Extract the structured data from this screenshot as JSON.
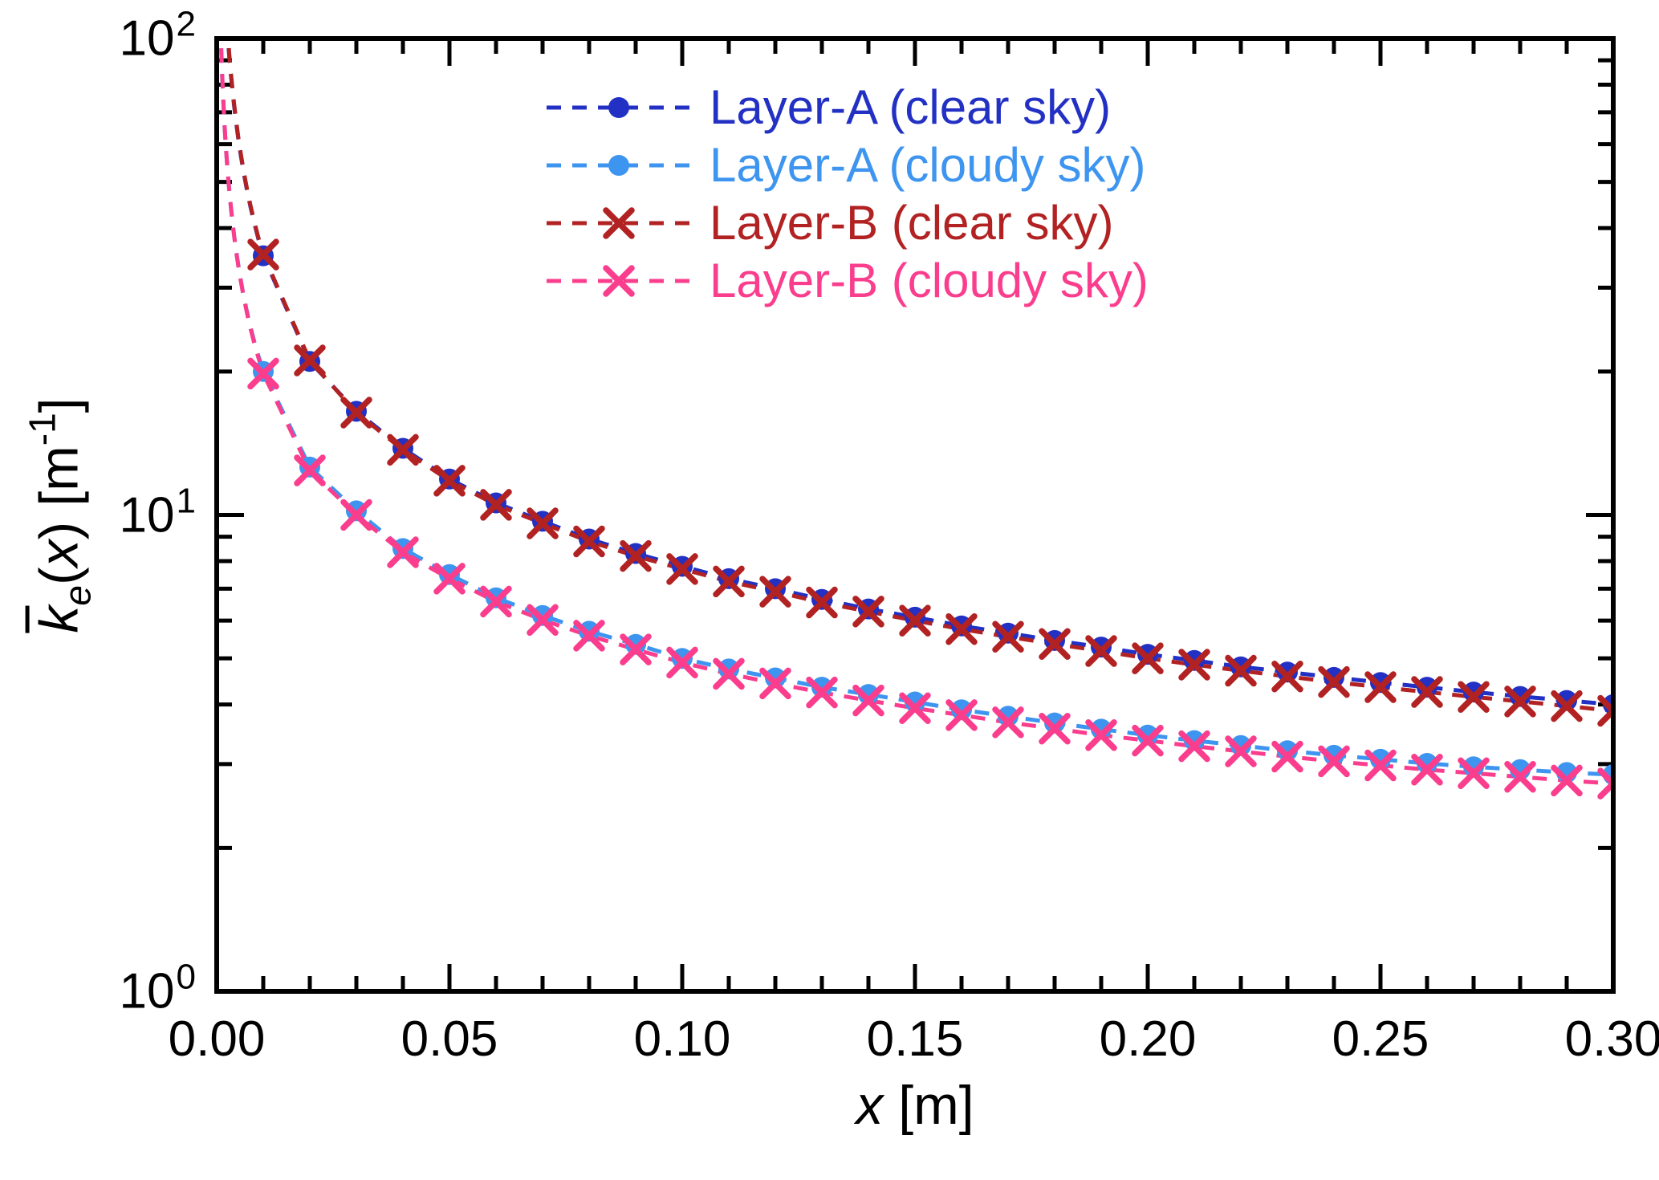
{
  "figure": {
    "background": "#ffffff"
  },
  "chart_data": {
    "type": "line",
    "title": "",
    "xlabel": {
      "var": "x",
      "unit": " [m]"
    },
    "ylabel": {
      "k": "k",
      "sub": "e",
      "open": "(",
      "var": "x",
      "close": ")",
      "unit": " [m",
      "exp": "-1",
      "bracket": "]"
    },
    "xscale": "linear",
    "yscale": "log",
    "xlim": [
      0,
      0.3
    ],
    "ylim": [
      1,
      100
    ],
    "grid": false,
    "legend_position": "inside upper right",
    "x_major_ticks": [
      0,
      0.05,
      0.1,
      0.15,
      0.2,
      0.25,
      0.3
    ],
    "x_tick_labels": [
      "0.00",
      "0.05",
      "0.10",
      "0.15",
      "0.20",
      "0.25",
      "0.30"
    ],
    "x_minor_step": 0.01,
    "y_major_ticks": [
      1,
      10,
      100
    ],
    "y_tick_labels": [
      {
        "base": "10",
        "exp": "0"
      },
      {
        "base": "10",
        "exp": "1"
      },
      {
        "base": "10",
        "exp": "2"
      }
    ],
    "x": [
      0.01,
      0.02,
      0.03,
      0.04,
      0.05,
      0.06,
      0.07,
      0.08,
      0.09,
      0.1,
      0.11,
      0.12,
      0.13,
      0.14,
      0.15,
      0.16,
      0.17,
      0.18,
      0.19,
      0.2,
      0.21,
      0.22,
      0.23,
      0.24,
      0.25,
      0.26,
      0.27,
      0.28,
      0.29,
      0.3
    ],
    "series": [
      {
        "name": "Layer-A (clear sky)",
        "color": "#2230c4",
        "marker": "circle",
        "linestyle": "dashed",
        "values": [
          35.0,
          21.0,
          16.5,
          13.8,
          11.9,
          10.6,
          9.7,
          8.9,
          8.3,
          7.8,
          7.35,
          7.0,
          6.65,
          6.35,
          6.1,
          5.85,
          5.65,
          5.45,
          5.28,
          5.1,
          4.95,
          4.8,
          4.68,
          4.56,
          4.45,
          4.35,
          4.25,
          4.16,
          4.08,
          4.0
        ]
      },
      {
        "name": "Layer-A (cloudy sky)",
        "color": "#3e95f0",
        "marker": "circle",
        "linestyle": "dashed",
        "values": [
          20.0,
          12.6,
          10.2,
          8.5,
          7.5,
          6.7,
          6.15,
          5.7,
          5.35,
          5.0,
          4.75,
          4.55,
          4.35,
          4.2,
          4.05,
          3.9,
          3.78,
          3.66,
          3.55,
          3.45,
          3.36,
          3.28,
          3.2,
          3.13,
          3.07,
          3.01,
          2.96,
          2.92,
          2.88,
          2.85
        ]
      },
      {
        "name": "Layer-B (clear sky)",
        "color": "#b22222",
        "marker": "x",
        "linestyle": "dashed",
        "values": [
          35.2,
          21.1,
          16.4,
          13.7,
          11.8,
          10.5,
          9.6,
          8.8,
          8.2,
          7.7,
          7.25,
          6.9,
          6.55,
          6.27,
          6.0,
          5.76,
          5.55,
          5.36,
          5.18,
          5.0,
          4.85,
          4.71,
          4.58,
          4.46,
          4.35,
          4.25,
          4.15,
          4.06,
          3.97,
          3.88
        ]
      },
      {
        "name": "Layer-B (cloudy sky)",
        "color": "#fb3d8d",
        "marker": "x",
        "linestyle": "dashed",
        "values": [
          19.8,
          12.4,
          10.0,
          8.35,
          7.35,
          6.58,
          6.02,
          5.58,
          5.22,
          4.9,
          4.64,
          4.43,
          4.24,
          4.08,
          3.93,
          3.8,
          3.67,
          3.56,
          3.45,
          3.36,
          3.27,
          3.19,
          3.11,
          3.04,
          2.98,
          2.92,
          2.87,
          2.82,
          2.77,
          2.73
        ]
      }
    ]
  }
}
